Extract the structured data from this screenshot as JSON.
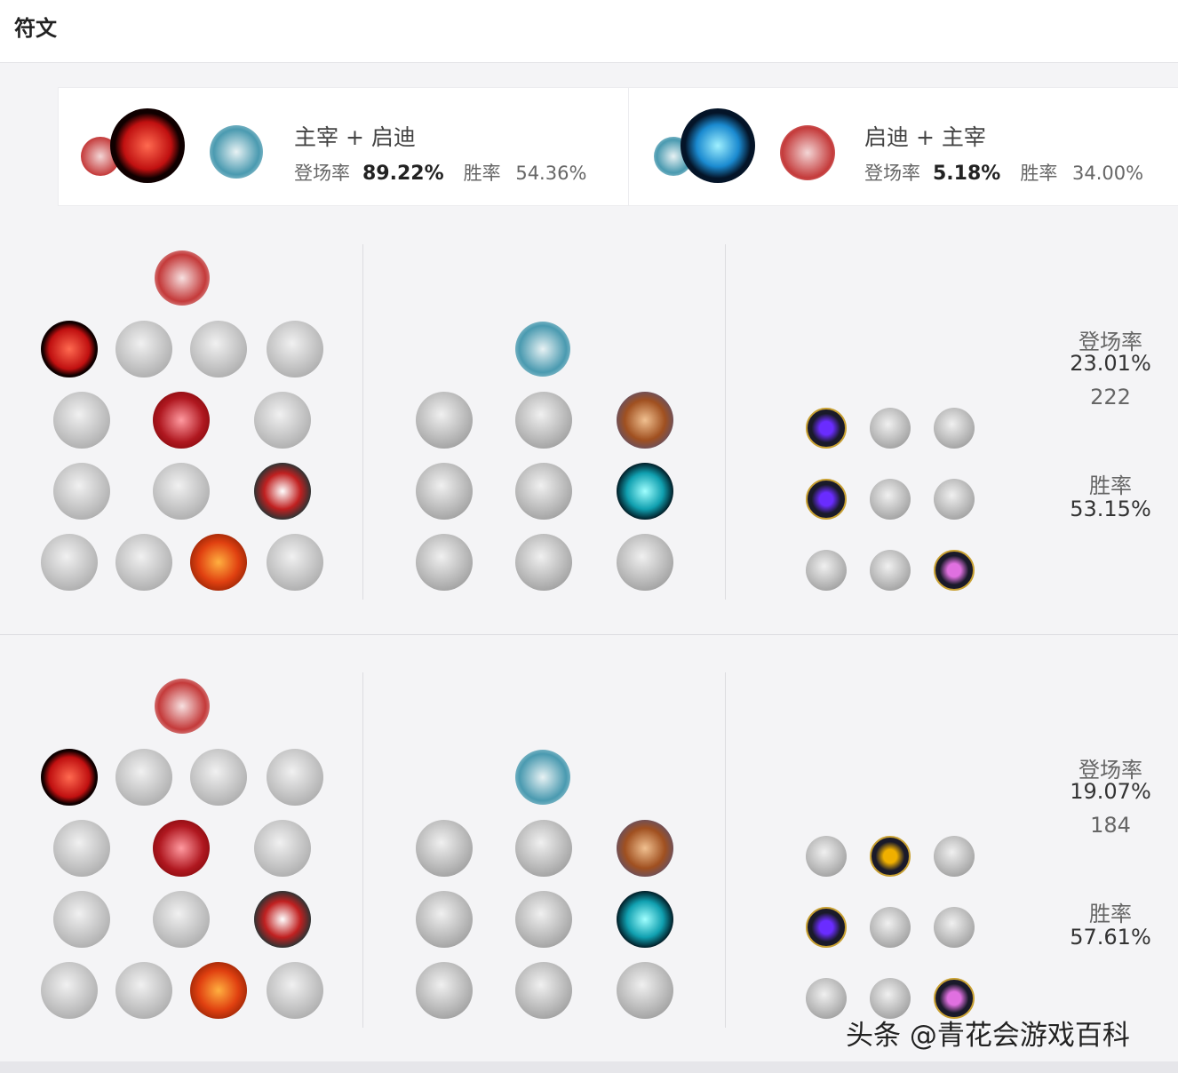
{
  "header": {
    "title": "符文"
  },
  "summary": [
    {
      "combo": "主宰 + 启迪",
      "pick_label": "登场率",
      "pick_rate": "89.22%",
      "win_label": "胜率",
      "win_rate": "54.36%"
    },
    {
      "combo": "启迪 + 主宰",
      "pick_label": "登场率",
      "pick_rate": "5.18%",
      "win_label": "胜率",
      "win_rate": "34.00%"
    }
  ],
  "builds": [
    {
      "pick_label": "登场率",
      "pick_rate": "23.01%",
      "games": "222",
      "win_label": "胜率",
      "win_rate": "53.15%",
      "primary_selected": [
        0,
        1,
        2,
        2
      ],
      "secondary_selected": [
        null,
        2,
        2
      ],
      "shards_selected": [
        0,
        0,
        2
      ],
      "shard_colors": [
        "#6a2cff",
        "#6a2cff",
        "#e070e0"
      ]
    },
    {
      "pick_label": "登场率",
      "pick_rate": "19.07%",
      "games": "184",
      "win_label": "胜率",
      "win_rate": "57.61%",
      "primary_selected": [
        0,
        1,
        2,
        2
      ],
      "secondary_selected": [
        null,
        2,
        2
      ],
      "shards_selected": [
        1,
        0,
        2
      ],
      "shard_colors": [
        "#f0b000",
        "#6a2cff",
        "#e070e0"
      ]
    }
  ],
  "colors": {
    "domination": "#c4202a",
    "inspiration": "#4a9ab0",
    "shard_ring": "#c8a032"
  },
  "watermark": "头条 @青花会游戏百科"
}
